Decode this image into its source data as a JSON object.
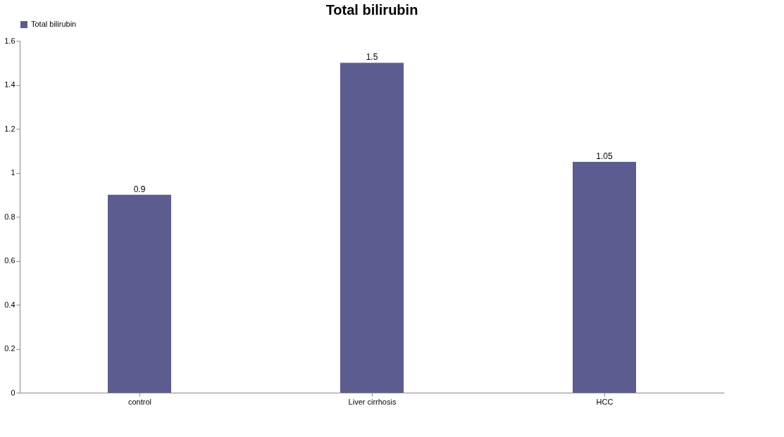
{
  "chart_data": {
    "type": "bar",
    "title": "Total bilirubin",
    "categories": [
      "control",
      "Liver cirrhosis",
      "HCC"
    ],
    "series": [
      {
        "name": "Total bilirubin",
        "color": "#5c5c91",
        "values": [
          0.9,
          1.5,
          1.05
        ]
      }
    ],
    "ylim": [
      0,
      1.6
    ],
    "yticks": [
      0,
      0.2,
      0.4,
      0.6,
      0.8,
      1,
      1.2,
      1.4,
      1.6
    ],
    "grid": false,
    "legend": "top",
    "data_labels": true
  }
}
